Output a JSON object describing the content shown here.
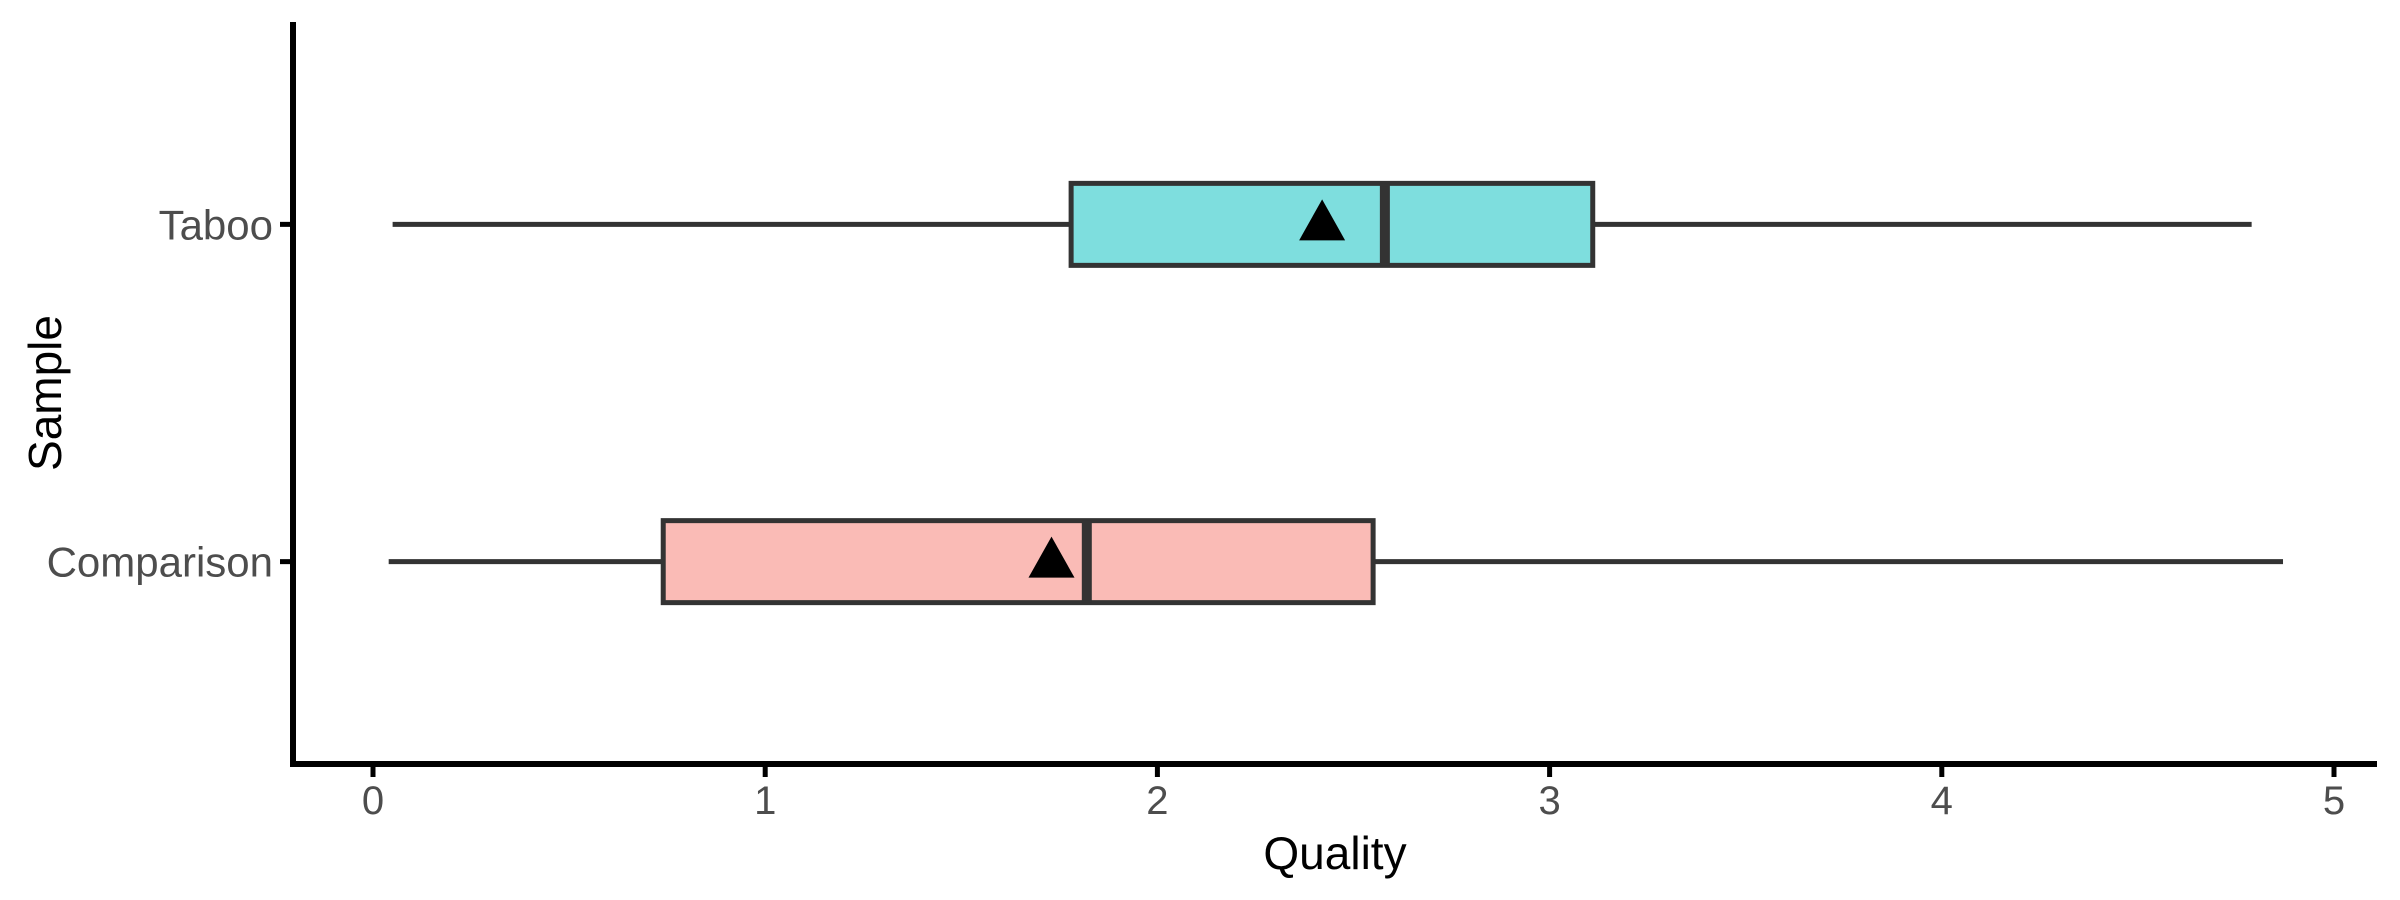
{
  "chart_data": {
    "type": "boxplot",
    "orientation": "horizontal",
    "title": "",
    "xlabel": "Quality",
    "ylabel": "Sample",
    "xlim": [
      0,
      5
    ],
    "xticks": [
      "0",
      "1",
      "2",
      "3",
      "4",
      "5"
    ],
    "xtick_values": [
      0,
      1,
      2,
      3,
      4,
      5
    ],
    "grid": false,
    "legend": "none",
    "categories": [
      "Taboo",
      "Comparison"
    ],
    "series": [
      {
        "name": "Taboo",
        "whisker_min": 0.05,
        "q1": 1.78,
        "median": 2.58,
        "q3": 3.11,
        "whisker_max": 4.79,
        "mean": 2.42,
        "fill": "#7EDEDE"
      },
      {
        "name": "Comparison",
        "whisker_min": 0.04,
        "q1": 0.74,
        "median": 1.82,
        "q3": 2.55,
        "whisker_max": 4.87,
        "mean": 1.73,
        "fill": "#FABBB6"
      }
    ],
    "mean_marker": "filled-triangle-up",
    "colors": {
      "box_stroke": "#333333",
      "whisker": "#333333",
      "median": "#333333",
      "mean_marker": "#000000",
      "axis_line": "#000000",
      "tick_label": "#4d4d4d",
      "axis_title": "#000000",
      "background": "#ffffff"
    }
  }
}
